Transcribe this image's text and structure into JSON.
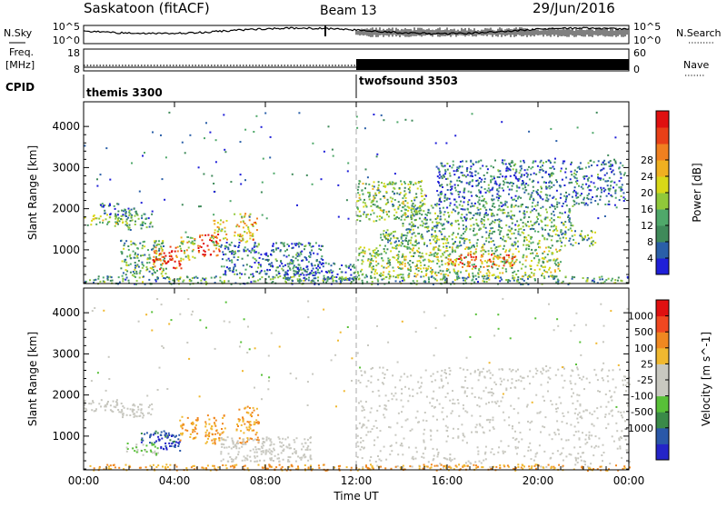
{
  "header": {
    "station": "Saskatoon (fitACF)",
    "beam": "Beam 13",
    "date": "29/Jun/2016"
  },
  "colors": {
    "power": [
      "#1f1fd8",
      "#2a5fa8",
      "#3f8a5a",
      "#4fa86a",
      "#90c83a",
      "#d8d818",
      "#f0b020",
      "#f08020",
      "#e84018",
      "#e01010"
    ],
    "velocity": [
      "#e01010",
      "#f04820",
      "#f08820",
      "#f0b830",
      "#c8c8c0",
      "#c8c8c0",
      "#58c038",
      "#3a8a48",
      "#2a58a8",
      "#2424c8"
    ],
    "dashed_marker": "#888888"
  },
  "top_panels": {
    "nsky_label": "N.Sky",
    "nsky_ticks": [
      "10^5",
      "10^0"
    ],
    "nsearch_label": "N.Search",
    "nsearch_ticks": [
      "10^5",
      "10^0"
    ],
    "freq_label": "Freq.",
    "freq_unit": "[MHz]",
    "freq_ticks": [
      "18",
      "8"
    ],
    "nave_label": "Nave",
    "nave_ticks": [
      "60",
      "0"
    ],
    "cpid_label": "CPID",
    "cpid_segments": [
      {
        "name": "themis 3300",
        "start_hour": 0
      },
      {
        "name": "twofsound 3503",
        "start_hour": 12
      }
    ]
  },
  "x_axis": {
    "label": "Time UT",
    "ticks": [
      "00:00",
      "04:00",
      "08:00",
      "12:00",
      "16:00",
      "20:00",
      "00:00"
    ]
  },
  "chart_data": [
    {
      "type": "heatmap",
      "title": "",
      "xlabel": "Time UT",
      "ylabel": "Slant Range [km]",
      "xlim": [
        0,
        24
      ],
      "ylim": [
        180,
        4600
      ],
      "yticks": [
        "1000",
        "2000",
        "3000",
        "4000"
      ],
      "colorbar_label": "Power [dB]",
      "colorbar_ticks": [
        "4",
        "8",
        "12",
        "16",
        "20",
        "24",
        "28"
      ],
      "bands": [
        {
          "t0": 0.0,
          "t1": 1.7,
          "r0": 1600,
          "r1": 1900,
          "level": 0.45
        },
        {
          "t0": 1.5,
          "t1": 3.0,
          "r0": 1500,
          "r1": 1900,
          "level": 0.3
        },
        {
          "t0": 0.7,
          "t1": 2.3,
          "r0": 1850,
          "r1": 2150,
          "level": 0.2
        },
        {
          "t0": 1.6,
          "t1": 3.6,
          "r0": 350,
          "r1": 1250,
          "level": 0.35
        },
        {
          "t0": 3.0,
          "t1": 4.3,
          "r0": 550,
          "r1": 1100,
          "level": 0.85
        },
        {
          "t0": 4.2,
          "t1": 4.9,
          "r0": 750,
          "r1": 1500,
          "level": 0.5
        },
        {
          "t0": 5.0,
          "t1": 6.0,
          "r0": 850,
          "r1": 1400,
          "level": 0.9
        },
        {
          "t0": 5.6,
          "t1": 6.3,
          "r0": 1100,
          "r1": 1750,
          "level": 0.55
        },
        {
          "t0": 6.6,
          "t1": 7.6,
          "r0": 1200,
          "r1": 1900,
          "level": 0.6
        },
        {
          "t0": 6.0,
          "t1": 10.5,
          "r0": 400,
          "r1": 1200,
          "level": 0.2
        },
        {
          "t0": 8.5,
          "t1": 12.0,
          "r0": 250,
          "r1": 700,
          "level": 0.2
        },
        {
          "t0": 0.0,
          "t1": 24.0,
          "r0": 180,
          "r1": 380,
          "level": 0.3
        },
        {
          "t0": 12.0,
          "t1": 15.0,
          "r0": 1700,
          "r1": 2700,
          "level": 0.4
        },
        {
          "t0": 13.0,
          "t1": 22.5,
          "r0": 1100,
          "r1": 1500,
          "level": 0.35
        },
        {
          "t0": 12.0,
          "t1": 21.0,
          "r0": 350,
          "r1": 1100,
          "level": 0.45
        },
        {
          "t0": 14.0,
          "t1": 21.5,
          "r0": 1500,
          "r1": 2100,
          "level": 0.3
        },
        {
          "t0": 15.5,
          "t1": 23.8,
          "r0": 2100,
          "r1": 3200,
          "level": 0.2
        },
        {
          "t0": 16.0,
          "t1": 19.0,
          "r0": 600,
          "r1": 900,
          "level": 0.75
        }
      ]
    },
    {
      "type": "heatmap",
      "title": "",
      "xlabel": "Time UT",
      "ylabel": "Slant Range [km]",
      "xlim": [
        0,
        24
      ],
      "ylim": [
        180,
        4600
      ],
      "yticks": [
        "1000",
        "2000",
        "3000",
        "4000"
      ],
      "colorbar_label": "Velocity [m s^-1]",
      "colorbar_ticks": [
        "1000",
        "500",
        "100",
        "25",
        "-25",
        "-100",
        "-500",
        "-1000"
      ],
      "bands": [
        {
          "t0": 0.0,
          "t1": 1.7,
          "r0": 1600,
          "r1": 1900,
          "level": 0.5
        },
        {
          "t0": 1.5,
          "t1": 3.0,
          "r0": 1450,
          "r1": 1800,
          "level": 0.5
        },
        {
          "t0": 1.8,
          "t1": 3.3,
          "r0": 550,
          "r1": 850,
          "level": 0.62
        },
        {
          "t0": 2.5,
          "t1": 4.0,
          "r0": 850,
          "r1": 1150,
          "level": 0.85
        },
        {
          "t0": 3.2,
          "t1": 4.3,
          "r0": 650,
          "r1": 1050,
          "level": 0.9
        },
        {
          "t0": 4.2,
          "t1": 5.0,
          "r0": 900,
          "r1": 1500,
          "level": 0.3
        },
        {
          "t0": 5.3,
          "t1": 6.2,
          "r0": 800,
          "r1": 1550,
          "level": 0.3
        },
        {
          "t0": 6.7,
          "t1": 7.7,
          "r0": 850,
          "r1": 1750,
          "level": 0.3
        },
        {
          "t0": 6.0,
          "t1": 10.0,
          "r0": 400,
          "r1": 1000,
          "level": 0.5
        },
        {
          "t0": 12.0,
          "t1": 24.0,
          "r0": 250,
          "r1": 2700,
          "level": 0.5
        },
        {
          "t0": 0.0,
          "t1": 24.0,
          "r0": 180,
          "r1": 330,
          "level": 0.3
        }
      ]
    }
  ]
}
